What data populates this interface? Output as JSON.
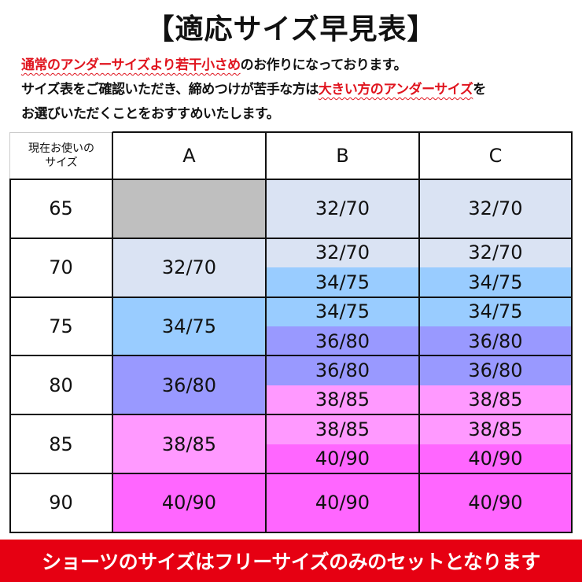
{
  "title": "【適応サイズ早見表】",
  "notes": {
    "line1_red": "通常のアンダーサイズより若干小さめ",
    "line1_rest": "のお作りになっております。",
    "line2_start": "サイズ表をご確認いただき、締めつけが苦手な方は",
    "line2_red": "大きい方のアンダーサイズ",
    "line2_end": "を",
    "line3": "お選びいただくことをおすすめいたします。"
  },
  "table": {
    "corner_line1": "現在お使いの",
    "corner_line2": "サイズ",
    "columns": [
      "A",
      "B",
      "C"
    ],
    "colors": {
      "none": "#bfbfbf",
      "32/70": "#dae3f3",
      "34/75": "#99ccff",
      "36/80": "#9999ff",
      "38/85": "#ff99ff",
      "40/90": "#ff66ff"
    },
    "rows": [
      {
        "size": "65",
        "A": [
          ""
        ],
        "B": [
          "32/70"
        ],
        "C": [
          "32/70"
        ]
      },
      {
        "size": "70",
        "A": [
          "32/70"
        ],
        "B": [
          "32/70",
          "34/75"
        ],
        "C": [
          "32/70",
          "34/75"
        ]
      },
      {
        "size": "75",
        "A": [
          "34/75"
        ],
        "B": [
          "34/75",
          "36/80"
        ],
        "C": [
          "34/75",
          "36/80"
        ]
      },
      {
        "size": "80",
        "A": [
          "36/80"
        ],
        "B": [
          "36/80",
          "38/85"
        ],
        "C": [
          "36/80",
          "38/85"
        ]
      },
      {
        "size": "85",
        "A": [
          "38/85"
        ],
        "B": [
          "38/85",
          "40/90"
        ],
        "C": [
          "38/85",
          "40/90"
        ]
      },
      {
        "size": "90",
        "A": [
          "40/90"
        ],
        "B": [
          "40/90"
        ],
        "C": [
          "40/90"
        ]
      }
    ]
  },
  "banner": "ショーツのサイズはフリーサイズのみのセットとなります"
}
